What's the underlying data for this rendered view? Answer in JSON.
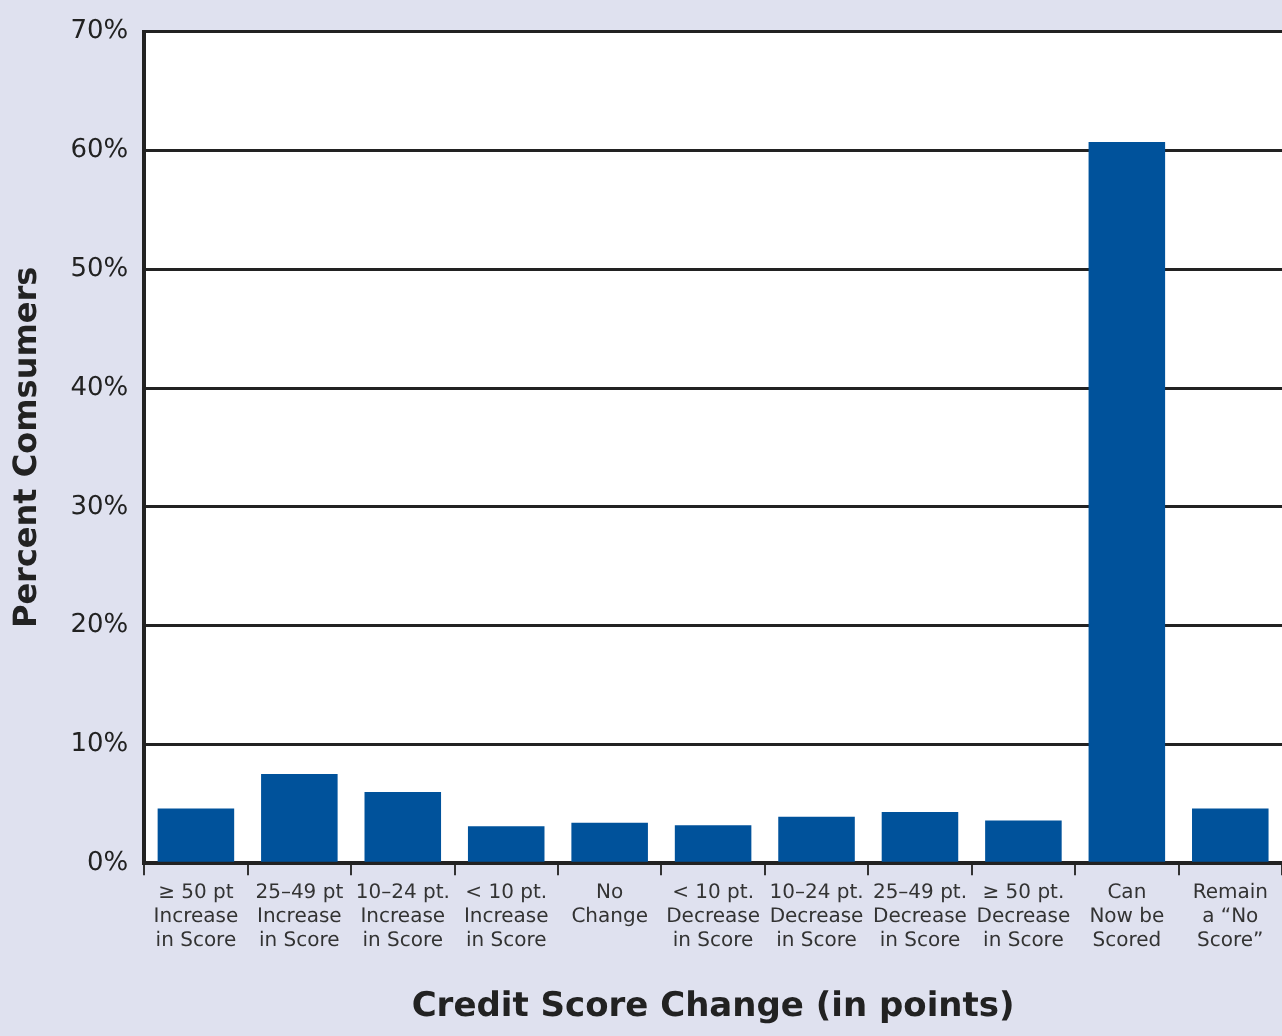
{
  "chart_data": {
    "type": "bar",
    "xlabel": "Credit Score Change (in points)",
    "ylabel": "Percent Comsumers",
    "categories": [
      "≥ 50 pt\nIncrease\nin Score",
      "25–49 pt\nIncrease\nin Score",
      "10–24 pt.\nIncrease\nin Score",
      "< 10 pt.\nIncrease\nin Score",
      "No\nChange",
      "< 10 pt.\nDecrease\nin Score",
      "10–24 pt.\nDecrease\nin Score",
      "25–49 pt.\nDecrease\nin Score",
      "≥ 50 pt.\nDecrease\nin Score",
      "Can\nNow be\nScored",
      "Remain\na “No\nScore”"
    ],
    "values": [
      4.6,
      7.5,
      6.0,
      3.1,
      3.4,
      3.2,
      3.9,
      4.3,
      3.6,
      60.7,
      4.6
    ],
    "color": "#00529b",
    "ylim": [
      0,
      70
    ],
    "yticks": [
      {
        "value": 0,
        "label": "0%"
      },
      {
        "value": 10,
        "label": "10%"
      },
      {
        "value": 20,
        "label": "20%"
      },
      {
        "value": 30,
        "label": "30%"
      },
      {
        "value": 40,
        "label": "40%"
      },
      {
        "value": 50,
        "label": "50%"
      },
      {
        "value": 60,
        "label": "60%"
      },
      {
        "value": 70,
        "label": "70%"
      }
    ],
    "grid": "y"
  }
}
